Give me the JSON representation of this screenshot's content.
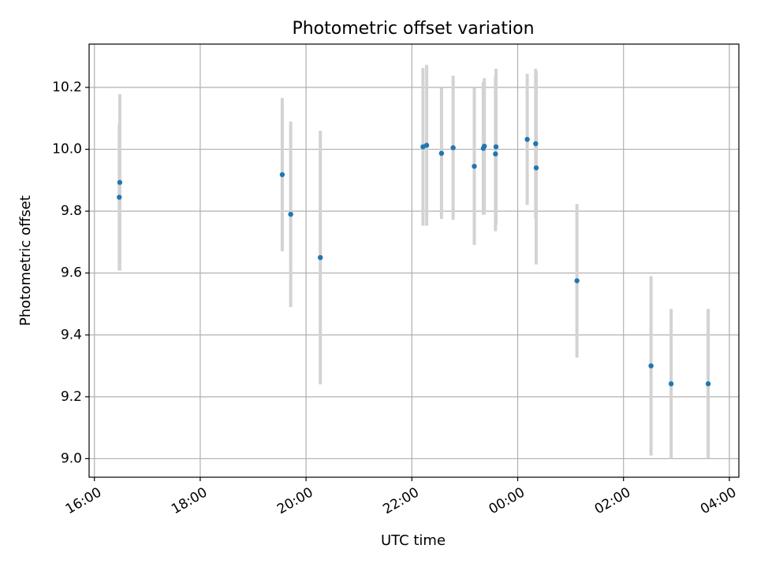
{
  "chart_data": {
    "type": "scatter",
    "title": "Photometric offset variation",
    "xlabel": "UTC time",
    "ylabel": "Photometric offset",
    "x_unit": "hours (UTC, continuing past midnight)",
    "xlim": [
      15.9,
      28.18
    ],
    "ylim": [
      8.94,
      10.34
    ],
    "x_ticks": [
      {
        "value": 16,
        "label": "16:00"
      },
      {
        "value": 18,
        "label": "18:00"
      },
      {
        "value": 20,
        "label": "20:00"
      },
      {
        "value": 22,
        "label": "22:00"
      },
      {
        "value": 24,
        "label": "00:00"
      },
      {
        "value": 26,
        "label": "02:00"
      },
      {
        "value": 28,
        "label": "04:00"
      }
    ],
    "y_ticks": [
      {
        "value": 9.0,
        "label": "9.0"
      },
      {
        "value": 9.2,
        "label": "9.2"
      },
      {
        "value": 9.4,
        "label": "9.4"
      },
      {
        "value": 9.6,
        "label": "9.6"
      },
      {
        "value": 9.8,
        "label": "9.8"
      },
      {
        "value": 10.0,
        "label": "10.0"
      },
      {
        "value": 10.2,
        "label": "10.2"
      }
    ],
    "grid": true,
    "marker_color": "#1f77b4",
    "errorbar_color": "#d3d3d3",
    "points": [
      {
        "x": 16.47,
        "y": 9.845,
        "err": 0.235
      },
      {
        "x": 16.48,
        "y": 9.893,
        "err": 0.285
      },
      {
        "x": 19.55,
        "y": 9.918,
        "err": 0.248
      },
      {
        "x": 19.71,
        "y": 9.79,
        "err": 0.3
      },
      {
        "x": 20.27,
        "y": 9.65,
        "err": 0.41
      },
      {
        "x": 22.21,
        "y": 10.008,
        "err": 0.255
      },
      {
        "x": 22.28,
        "y": 10.013,
        "err": 0.26
      },
      {
        "x": 22.56,
        "y": 9.987,
        "err": 0.212
      },
      {
        "x": 22.78,
        "y": 10.005,
        "err": 0.233
      },
      {
        "x": 23.18,
        "y": 9.945,
        "err": 0.254
      },
      {
        "x": 23.35,
        "y": 10.003,
        "err": 0.215
      },
      {
        "x": 23.37,
        "y": 10.01,
        "err": 0.22
      },
      {
        "x": 23.58,
        "y": 9.985,
        "err": 0.25
      },
      {
        "x": 23.59,
        "y": 10.008,
        "err": 0.252
      },
      {
        "x": 24.18,
        "y": 10.032,
        "err": 0.212
      },
      {
        "x": 24.34,
        "y": 10.018,
        "err": 0.242
      },
      {
        "x": 24.35,
        "y": 9.94,
        "err": 0.312
      },
      {
        "x": 25.12,
        "y": 9.575,
        "err": 0.248
      },
      {
        "x": 26.52,
        "y": 9.3,
        "err": 0.29
      },
      {
        "x": 26.9,
        "y": 9.242,
        "err": 0.242
      },
      {
        "x": 27.6,
        "y": 9.242,
        "err": 0.242
      }
    ]
  }
}
